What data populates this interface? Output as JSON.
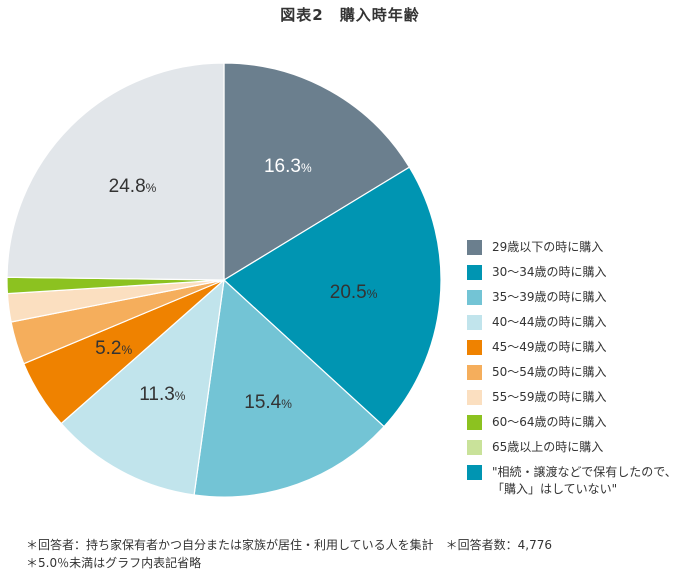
{
  "header": {
    "title": "図表2　購入時年齢"
  },
  "legend": [
    {
      "label": "29歳以下の時に購入",
      "color": "#6b7f8e"
    },
    {
      "label": "30〜34歳の時に購入",
      "color": "#0095b2"
    },
    {
      "label": "35〜39歳の時に購入",
      "color": "#73c4d5"
    },
    {
      "label": "40〜44歳の時に購入",
      "color": "#c1e4ec"
    },
    {
      "label": "45〜49歳の時に購入",
      "color": "#ef8200"
    },
    {
      "label": "50〜54歳の時に購入",
      "color": "#f5ae5c"
    },
    {
      "label": "55〜59歳の時に購入",
      "color": "#fbdfc0"
    },
    {
      "label": "60〜64歳の時に購入",
      "color": "#8cc220"
    },
    {
      "label": "65歳以上の時に購入",
      "color": "#c9e29a"
    },
    {
      "label": "\"相続・譲渡などで保有したので、\n「購入」はしていない\"",
      "color": "#0095b2"
    }
  ],
  "footnotes": {
    "line1": "＊回答者：持ち家保有者かつ自分または家族が居住・利用している人を集計　＊回答者数：4,776",
    "line2": "＊5.0％未満はグラフ内表記省略"
  },
  "chart_data": {
    "type": "pie",
    "title": "図表2　購入時年齢",
    "start_angle": "12 o'clock, clockwise",
    "categories": [
      "29歳以下の時に購入",
      "30〜34歳の時に購入",
      "35〜39歳の時に購入",
      "40〜44歳の時に購入",
      "45〜49歳の時に購入",
      "50〜54歳の時に購入",
      "55〜59歳の時に購入",
      "60〜64歳の時に購入",
      "65歳以上の時に購入",
      "\"相続・譲渡などで保有したので、「購入」はしていない\""
    ],
    "values": [
      16.3,
      20.5,
      15.4,
      11.3,
      5.2,
      3.2,
      2.1,
      1.2,
      0.0,
      24.8
    ],
    "colors": [
      "#6b7f8e",
      "#0095b2",
      "#73c4d5",
      "#c1e4ec",
      "#ef8200",
      "#f5ae5c",
      "#fbdfc0",
      "#8cc220",
      "#c9e29a",
      "#e2e6ea"
    ],
    "data_labels": [
      "16.3",
      "20.5",
      "15.4",
      "11.3",
      "5.2",
      "",
      "",
      "",
      "",
      "24.8"
    ],
    "label_unit": "%",
    "label_threshold_note": "5.0%未満はグラフ内表記省略",
    "legend_position": "right",
    "n_respondents": 4776
  }
}
